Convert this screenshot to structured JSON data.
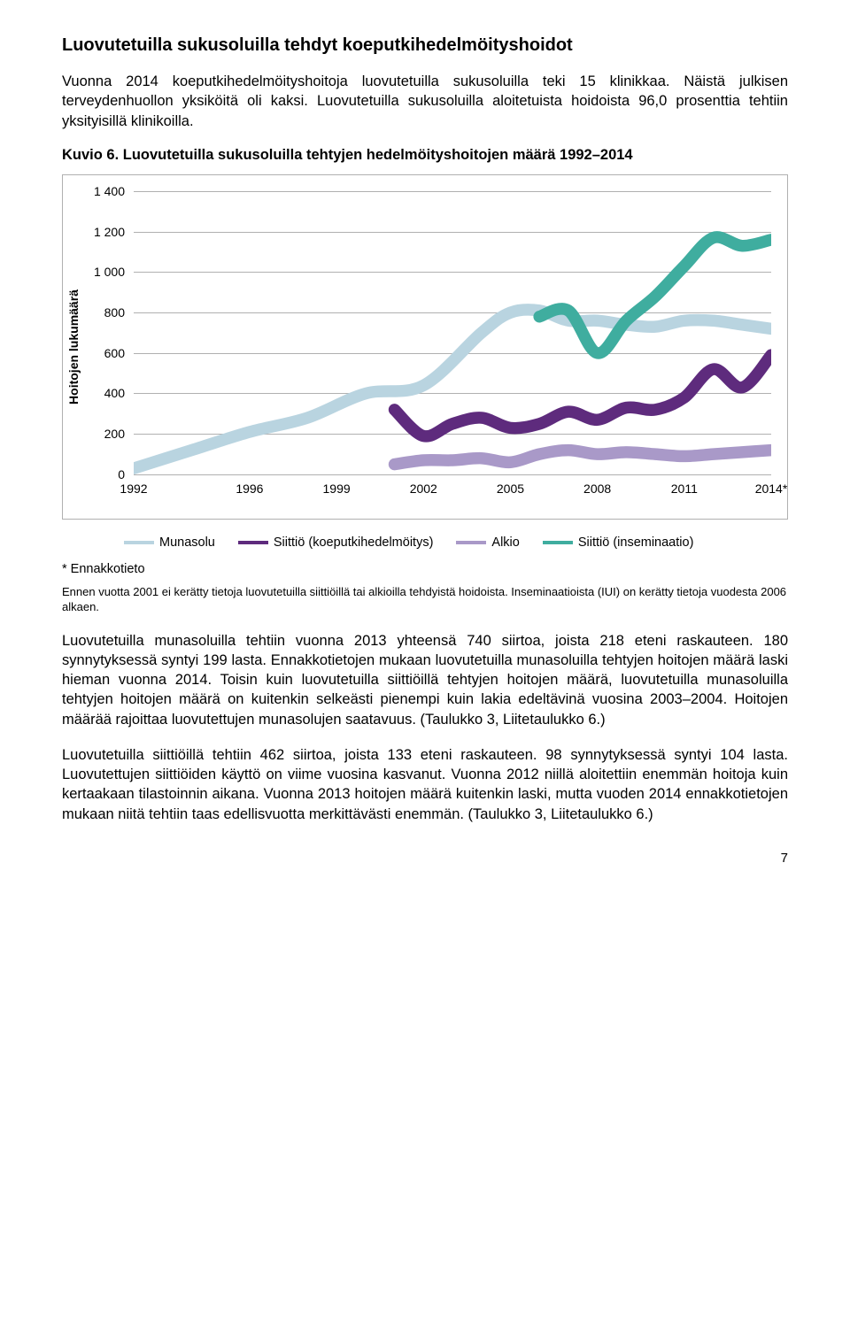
{
  "heading": "Luovutetuilla sukusoluilla tehdyt koeputkihedelmöityshoidot",
  "para1": "Vuonna 2014 koeputkihedelmöityshoitoja luovutetuilla sukusoluilla teki 15 klinikkaa. Näistä julkisen terveydenhuollon yksiköitä oli kaksi. Luovutetuilla sukusoluilla aloitetuista hoidoista 96,0 prosenttia tehtiin yksityisillä klinikoilla.",
  "chart_title": "Kuvio 6. Luovutetuilla sukusoluilla tehtyjen hedelmöityshoitojen määrä 1992–2014",
  "chart": {
    "y_axis_title": "Hoitojen lukumäärä",
    "y_ticks": [
      "0",
      "200",
      "400",
      "600",
      "800",
      "1 000",
      "1 200",
      "1 400"
    ],
    "ymax": 1400,
    "x_ticks": [
      "1992",
      "1996",
      "1999",
      "2002",
      "2005",
      "2008",
      "2011",
      "2014*"
    ],
    "grid_color": "#b0b0b0",
    "series": [
      {
        "name": "Munasolu",
        "color": "#b9d4e0",
        "width": 4.5,
        "points": [
          [
            1992,
            30
          ],
          [
            1994,
            120
          ],
          [
            1996,
            210
          ],
          [
            1998,
            280
          ],
          [
            2000,
            400
          ],
          [
            2002,
            440
          ],
          [
            2004,
            700
          ],
          [
            2005,
            800
          ],
          [
            2006,
            810
          ],
          [
            2007,
            760
          ],
          [
            2008,
            760
          ],
          [
            2009,
            740
          ],
          [
            2010,
            730
          ],
          [
            2011,
            760
          ],
          [
            2012,
            760
          ],
          [
            2013,
            740
          ],
          [
            2014,
            720
          ]
        ]
      },
      {
        "name": "Siittiö (koeputkihedelmöitys)",
        "color": "#5e2b7d",
        "width": 4.5,
        "points": [
          [
            2001,
            320
          ],
          [
            2002,
            190
          ],
          [
            2003,
            250
          ],
          [
            2004,
            280
          ],
          [
            2005,
            230
          ],
          [
            2006,
            250
          ],
          [
            2007,
            310
          ],
          [
            2008,
            270
          ],
          [
            2009,
            330
          ],
          [
            2010,
            320
          ],
          [
            2011,
            380
          ],
          [
            2012,
            520
          ],
          [
            2013,
            430
          ],
          [
            2014,
            590
          ]
        ]
      },
      {
        "name": "Alkio",
        "color": "#a999c8",
        "width": 4.5,
        "points": [
          [
            2001,
            50
          ],
          [
            2002,
            70
          ],
          [
            2003,
            70
          ],
          [
            2004,
            80
          ],
          [
            2005,
            60
          ],
          [
            2006,
            100
          ],
          [
            2007,
            120
          ],
          [
            2008,
            100
          ],
          [
            2009,
            110
          ],
          [
            2010,
            100
          ],
          [
            2011,
            90
          ],
          [
            2012,
            100
          ],
          [
            2013,
            110
          ],
          [
            2014,
            120
          ]
        ]
      },
      {
        "name": "Siittiö (inseminaatio)",
        "color": "#3fad9f",
        "width": 4.5,
        "points": [
          [
            2006,
            780
          ],
          [
            2007,
            810
          ],
          [
            2008,
            600
          ],
          [
            2009,
            760
          ],
          [
            2010,
            880
          ],
          [
            2011,
            1030
          ],
          [
            2012,
            1170
          ],
          [
            2013,
            1130
          ],
          [
            2014,
            1160
          ]
        ]
      }
    ]
  },
  "legend": [
    {
      "label": "Munasolu",
      "color": "#b9d4e0"
    },
    {
      "label": "Siittiö (koeputkihedelmöitys)",
      "color": "#5e2b7d"
    },
    {
      "label": "Alkio",
      "color": "#a999c8"
    },
    {
      "label": "Siittiö (inseminaatio)",
      "color": "#3fad9f"
    }
  ],
  "footnote_star": "* Ennakkotieto",
  "footnote_small": "Ennen vuotta 2001 ei kerätty tietoja luovutetuilla siittiöillä tai alkioilla tehdyistä hoidoista. Inseminaatioista (IUI) on kerätty tietoja vuodesta 2006 alkaen.",
  "para2": "Luovutetuilla munasoluilla tehtiin vuonna 2013 yhteensä 740 siirtoa, joista 218 eteni raskauteen. 180 synnytyksessä syntyi 199 lasta. Ennakkotietojen mukaan luovutetuilla munasoluilla tehtyjen hoitojen määrä laski hieman vuonna 2014. Toisin kuin luovutetuilla siittiöillä tehtyjen hoitojen määrä, luovutetuilla munasoluilla tehtyjen hoitojen määrä on kuitenkin selkeästi pienempi kuin lakia edeltävinä vuosina 2003–2004. Hoitojen määrää rajoittaa luovutettujen munasolujen saatavuus. (Taulukko 3, Liitetaulukko 6.)",
  "para3": "Luovutetuilla siittiöillä tehtiin 462 siirtoa, joista 133 eteni raskauteen. 98 synnytyksessä syntyi 104 lasta. Luovutettujen siittiöiden käyttö on viime vuosina kasvanut. Vuonna 2012 niillä aloitettiin enemmän hoitoja kuin kertaakaan tilastoinnin aikana. Vuonna 2013 hoitojen määrä kuitenkin laski, mutta vuoden 2014 ennakkotietojen mukaan niitä tehtiin taas edellisvuotta merkittävästi enemmän. (Taulukko 3, Liitetaulukko 6.)",
  "page_num": "7"
}
